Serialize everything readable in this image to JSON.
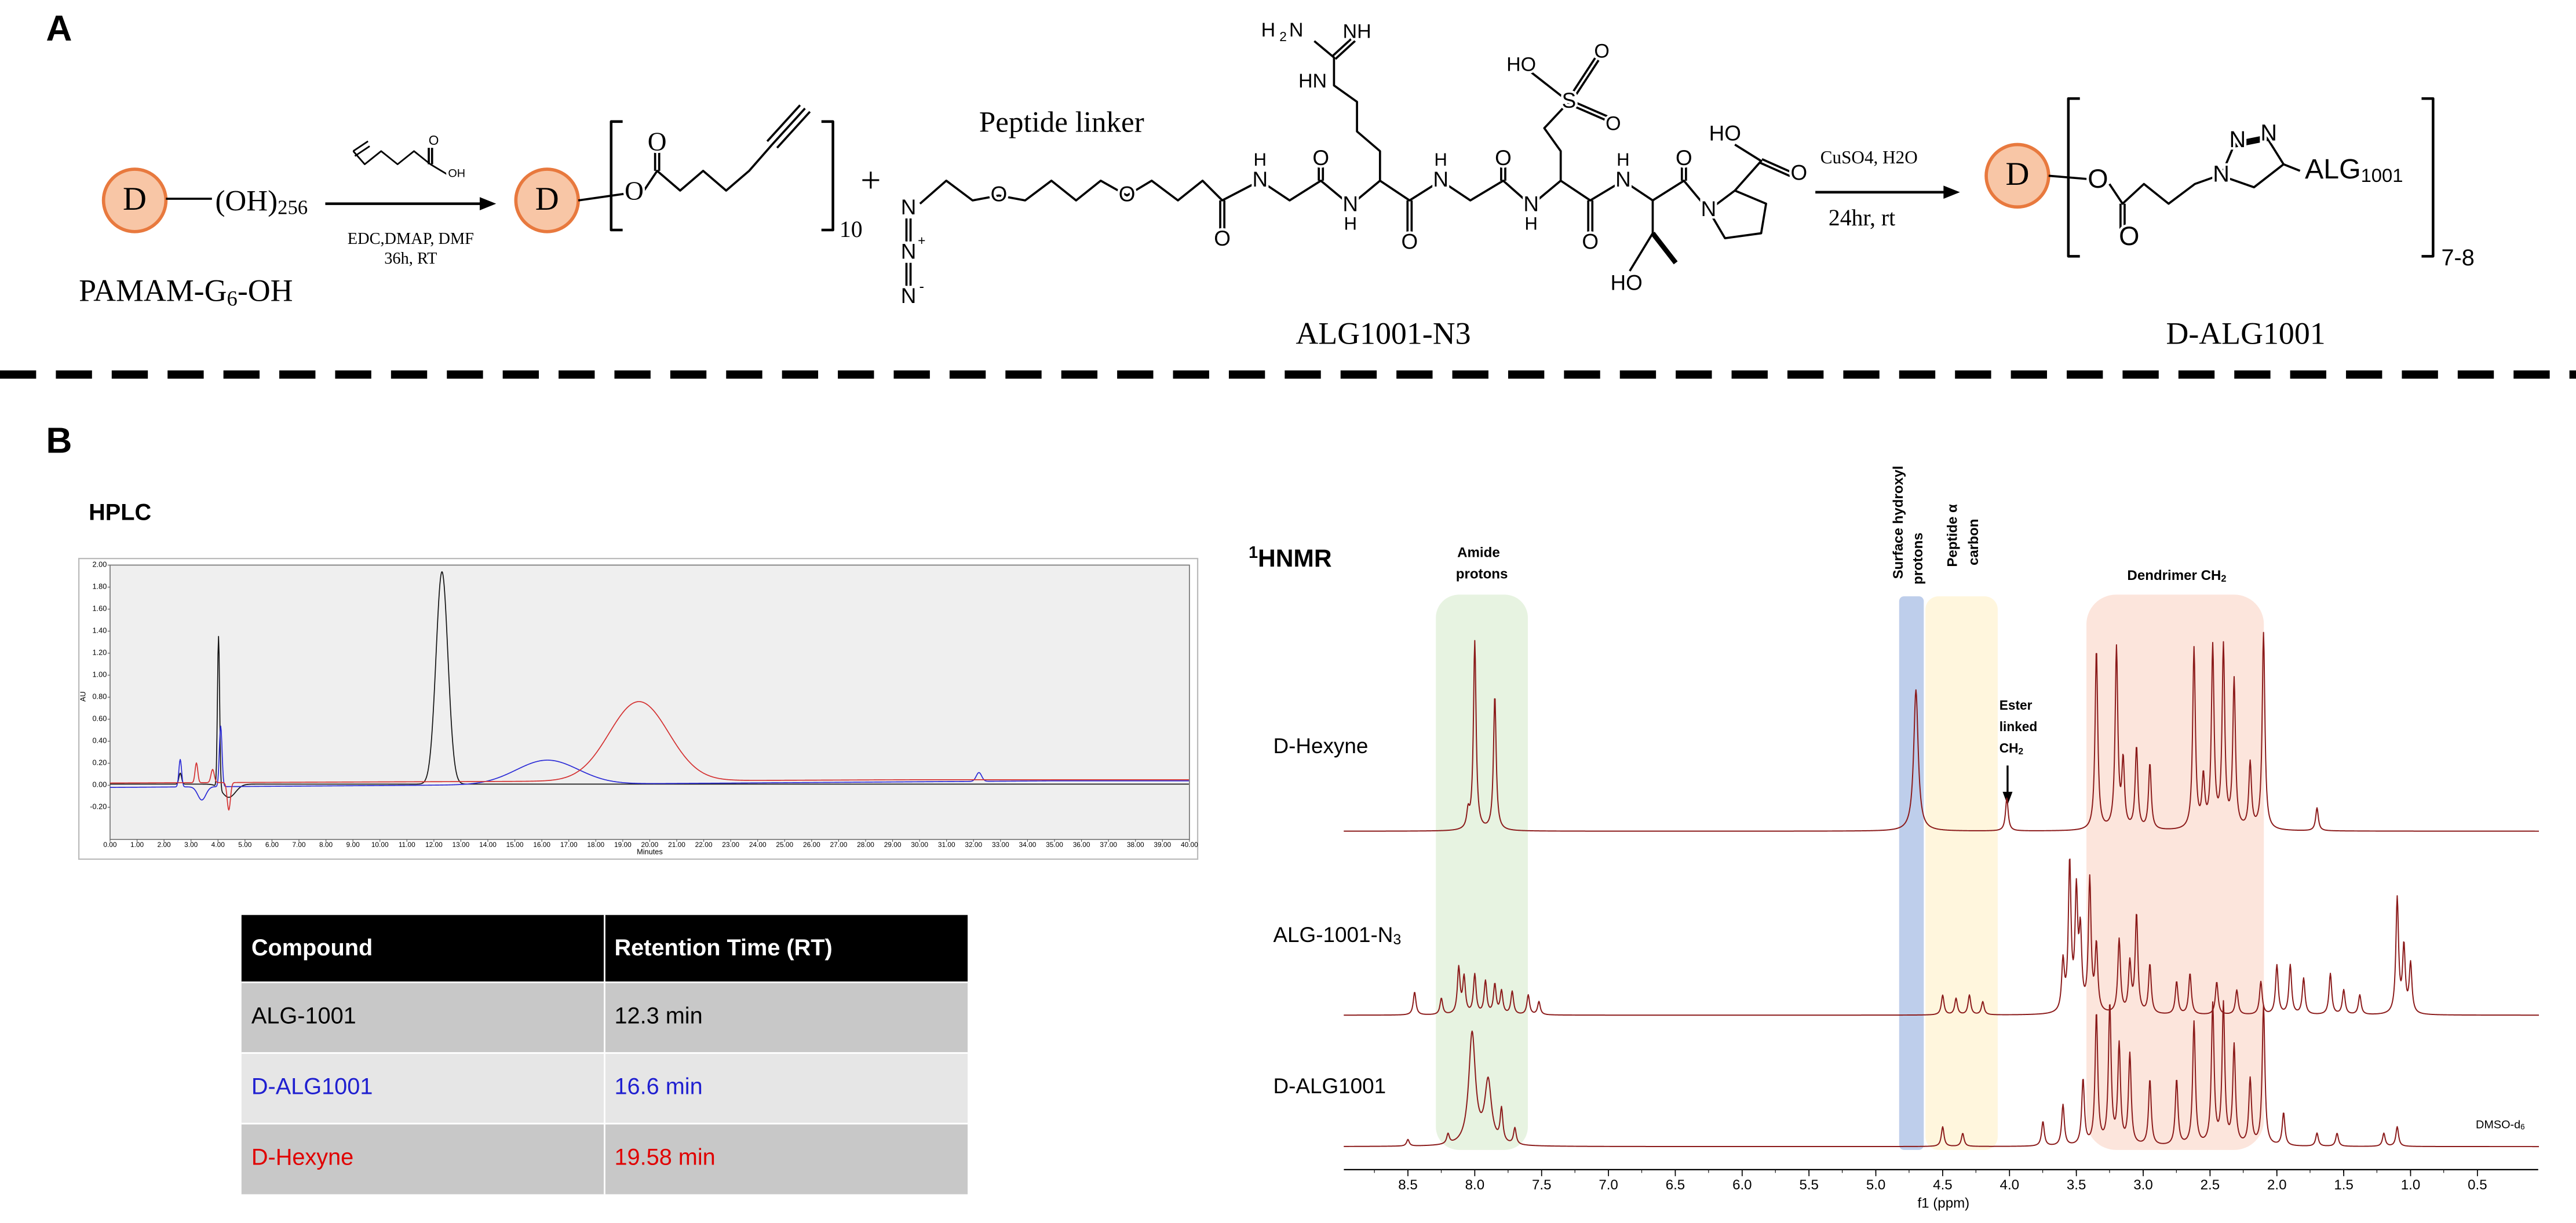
{
  "panel_labels": [
    "A",
    "B"
  ],
  "scheme": {
    "core_label": "D",
    "start_group": [
      "(OH)",
      "256"
    ],
    "start_name": [
      "PAMAM-G",
      "6",
      "-OH"
    ],
    "step1_conditions": [
      "EDC,DMAP, DMF",
      "36h, RT"
    ],
    "step1_reagent_atoms": [
      "O",
      "OH"
    ],
    "intermediate_atoms": [
      "O",
      "O"
    ],
    "intermediate_repeat": "10",
    "plus": "+",
    "linker_caption": "Peptide linker",
    "peptide_atoms": [
      "N",
      "N",
      "+",
      "N",
      "-",
      "O",
      "O",
      "O",
      "H",
      "N",
      "O",
      "N",
      "H",
      "O",
      "H",
      "N",
      "O",
      "N",
      "H",
      "O",
      "H",
      "N",
      "O",
      "N",
      "HO",
      "HO",
      "O",
      "H",
      "2",
      "N",
      "NH",
      "HN",
      "HO",
      "S",
      "O",
      "O"
    ],
    "peptide_name": "ALG1001-N3",
    "step2_conditions": [
      "CuSO4, H2O",
      "24hr, rt"
    ],
    "product_atoms": [
      "O",
      "O",
      "N",
      "N",
      "N"
    ],
    "product_group": [
      "ALG",
      "1001"
    ],
    "product_repeat": "7-8",
    "product_name": "D-ALG1001"
  },
  "hplc": {
    "title": "HPLC",
    "ylabel": "AU",
    "xlabel": "Minutes",
    "yticks": [
      "2.00",
      "1.80",
      "1.60",
      "1.40",
      "1.20",
      "1.00",
      "0.80",
      "0.60",
      "0.40",
      "0.20",
      "0.00",
      "-0.20"
    ],
    "xticks": [
      "0.00",
      "1.00",
      "2.00",
      "3.00",
      "4.00",
      "5.00",
      "6.00",
      "7.00",
      "8.00",
      "9.00",
      "10.00",
      "11.00",
      "12.00",
      "13.00",
      "14.00",
      "15.00",
      "16.00",
      "17.00",
      "18.00",
      "19.00",
      "20.00",
      "21.00",
      "22.00",
      "23.00",
      "24.00",
      "25.00",
      "26.00",
      "27.00",
      "28.00",
      "29.00",
      "30.00",
      "31.00",
      "32.00",
      "33.00",
      "34.00",
      "35.00",
      "36.00",
      "37.00",
      "38.00",
      "39.00",
      "40.00"
    ]
  },
  "table": {
    "header": [
      "Compound",
      "Retention Time (RT)"
    ],
    "rows": [
      [
        "ALG-1001",
        "12.3 min"
      ],
      [
        "D-ALG1001",
        "16.6 min"
      ],
      [
        "D-Hexyne",
        "19.58 min"
      ]
    ]
  },
  "nmr": {
    "title": [
      "1",
      "HNMR"
    ],
    "regions": [
      [
        "Amide",
        "protons"
      ],
      [
        "Surface hydroxyl",
        "protons"
      ],
      [
        "Peptide α",
        "carbon"
      ],
      [
        "Dendrimer CH",
        "2"
      ]
    ],
    "annotation": [
      "Ester",
      "linked",
      "CH",
      "2"
    ],
    "traces": [
      [
        "D-Hexyne"
      ],
      [
        "ALG-1001-N",
        "3"
      ],
      [
        "D-ALG1001"
      ]
    ],
    "solvent": [
      "DMSO-d",
      "6"
    ],
    "xticks": [
      "8.5",
      "8.0",
      "7.5",
      "7.0",
      "6.5",
      "6.0",
      "5.5",
      "5.0",
      "4.5",
      "4.0",
      "3.5",
      "3.0",
      "2.5",
      "2.0",
      "1.5",
      "1.0",
      "0.5"
    ],
    "xlabel": "f1 (ppm)"
  }
}
